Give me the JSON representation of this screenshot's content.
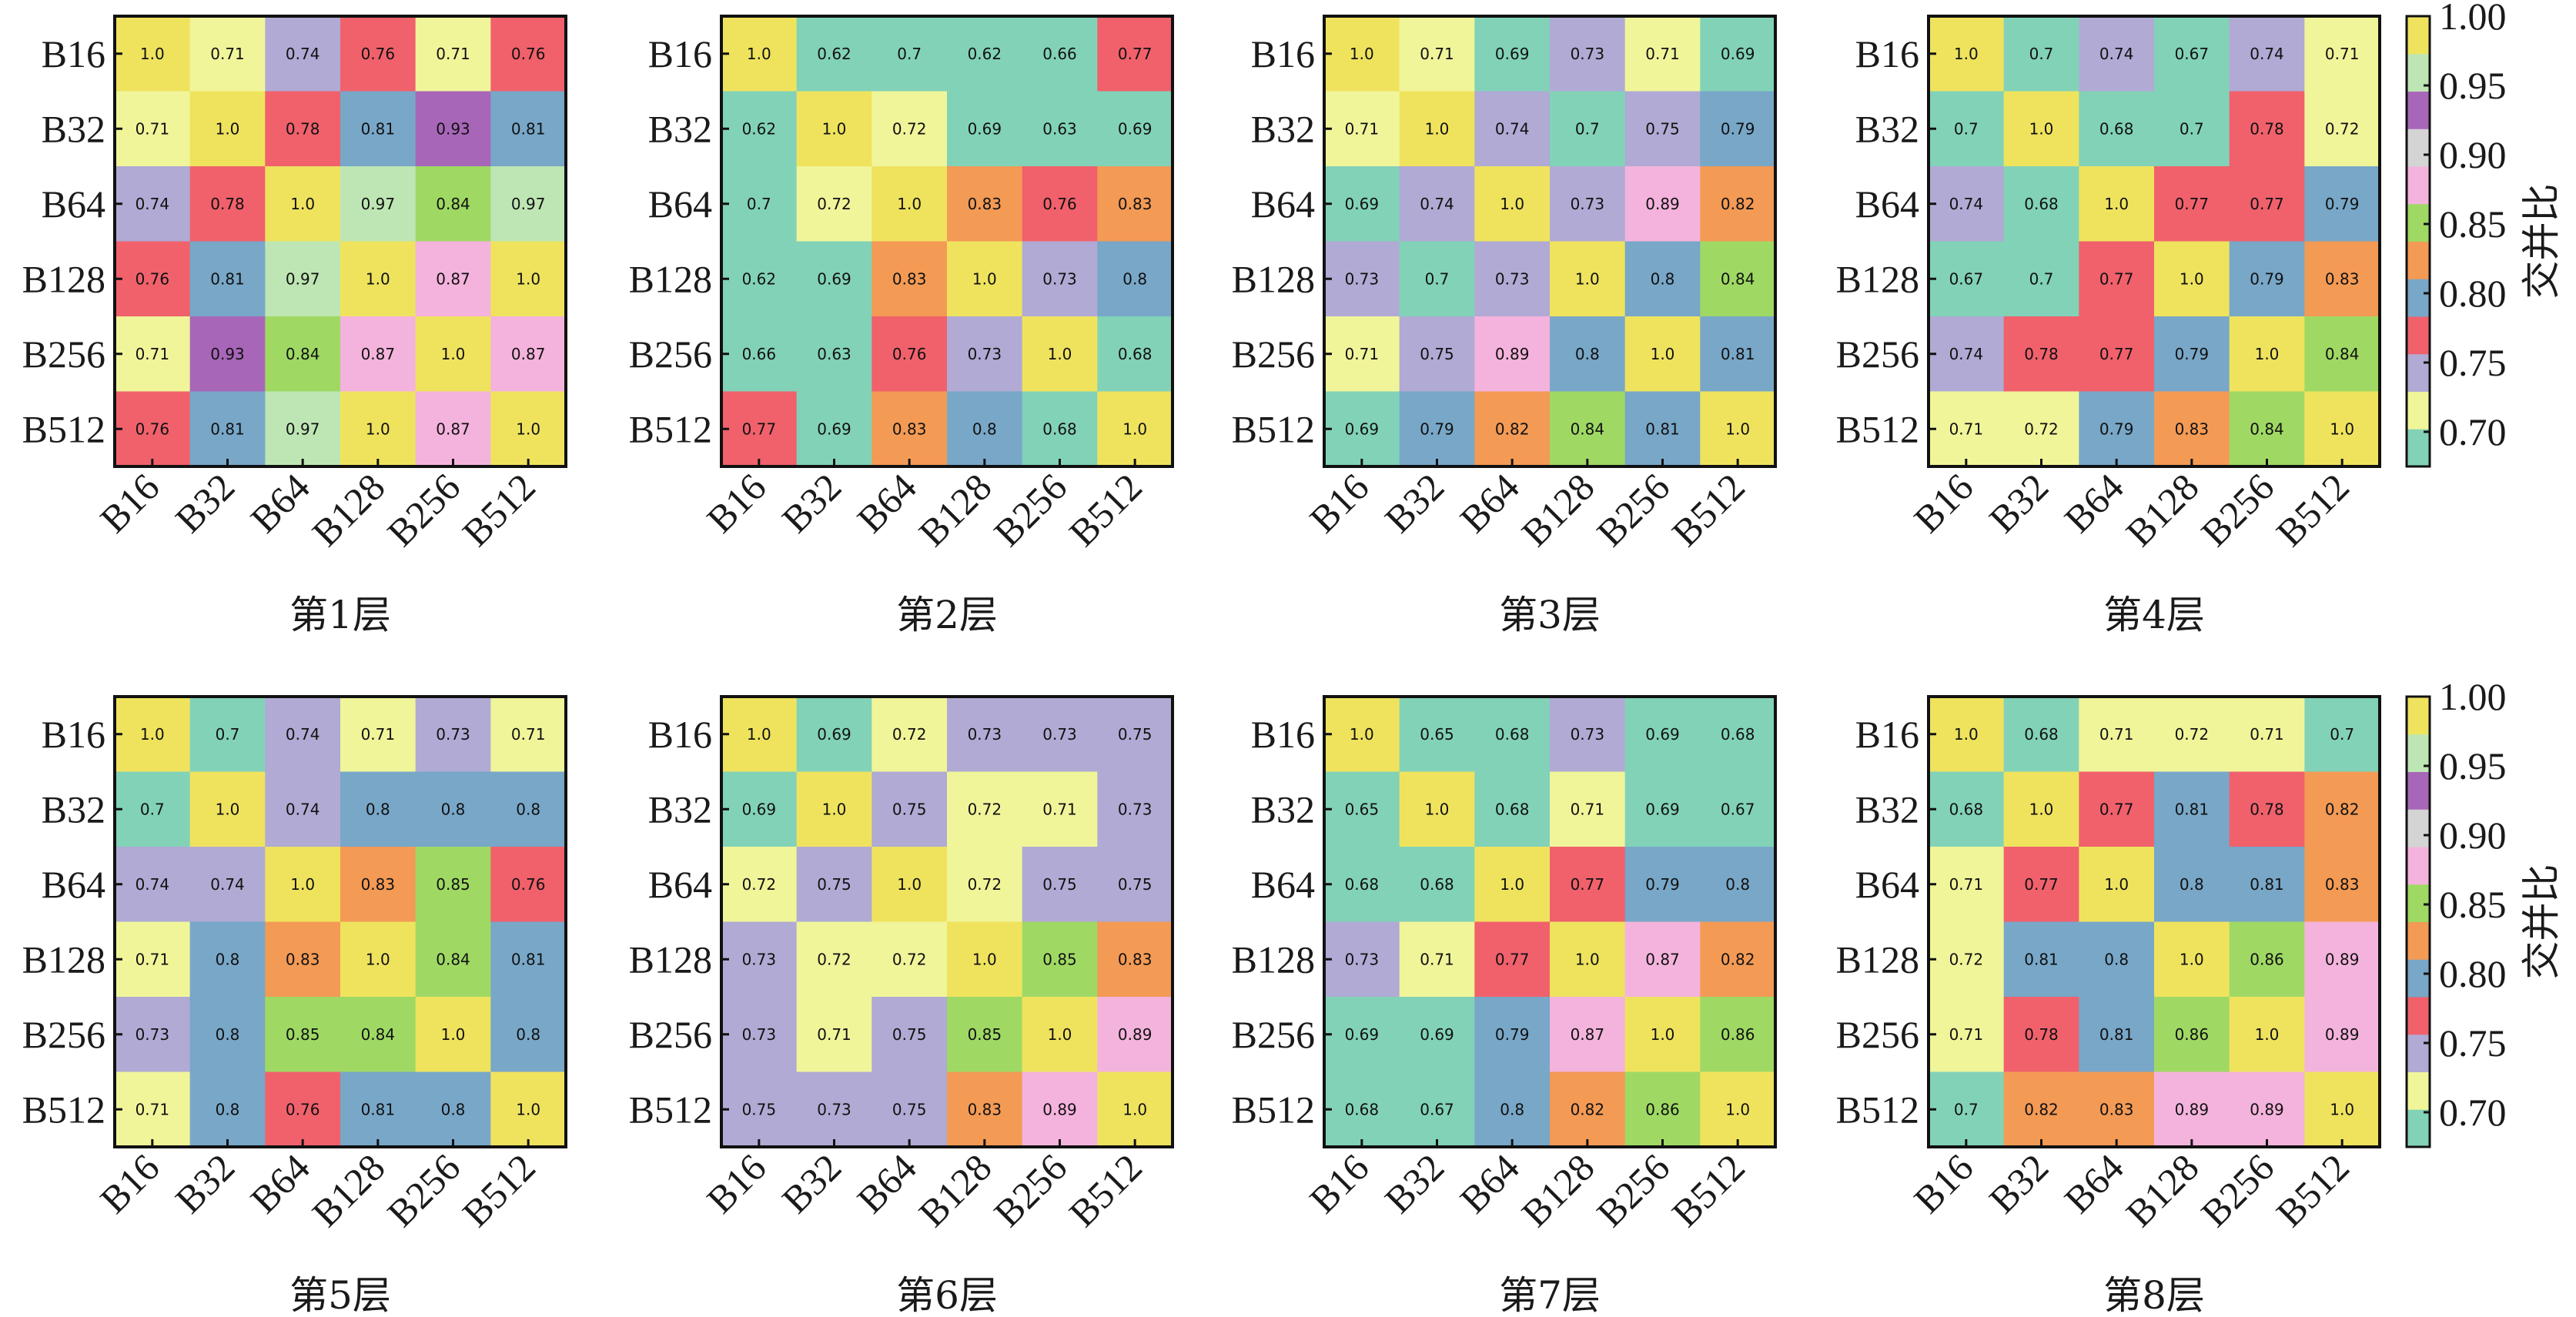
{
  "chart_data": {
    "type": "heatmap",
    "row_labels": [
      "B16",
      "B32",
      "B64",
      "B128",
      "B256",
      "B512"
    ],
    "col_labels": [
      "B16",
      "B32",
      "B64",
      "B128",
      "B256",
      "B512"
    ],
    "colorbar": {
      "label": "交并比",
      "ticks": [
        "0.70",
        "0.75",
        "0.80",
        "0.85",
        "0.90",
        "0.95",
        "1.00"
      ],
      "tick_values": [
        0.7,
        0.75,
        0.8,
        0.85,
        0.9,
        0.95,
        1.0
      ],
      "range": [
        0.675,
        1.0
      ],
      "colors": [
        "#82d2b8",
        "#f0f59a",
        "#b0aad4",
        "#f0616c",
        "#78a7c8",
        "#f39a55",
        "#9fd964",
        "#f4b3dc",
        "#d4d4d4",
        "#a866b8",
        "#bee6b4",
        "#efe35e"
      ]
    },
    "panels": [
      {
        "title": "第1层",
        "values": [
          [
            1.0,
            0.71,
            0.74,
            0.76,
            0.71,
            0.76
          ],
          [
            0.71,
            1.0,
            0.78,
            0.81,
            0.93,
            0.81
          ],
          [
            0.74,
            0.78,
            1.0,
            0.97,
            0.84,
            0.97
          ],
          [
            0.76,
            0.81,
            0.97,
            1.0,
            0.87,
            1.0
          ],
          [
            0.71,
            0.93,
            0.84,
            0.87,
            1.0,
            0.87
          ],
          [
            0.76,
            0.81,
            0.97,
            1.0,
            0.87,
            1.0
          ]
        ]
      },
      {
        "title": "第2层",
        "values": [
          [
            1.0,
            0.62,
            0.7,
            0.62,
            0.66,
            0.77
          ],
          [
            0.62,
            1.0,
            0.72,
            0.69,
            0.63,
            0.69
          ],
          [
            0.7,
            0.72,
            1.0,
            0.83,
            0.76,
            0.83
          ],
          [
            0.62,
            0.69,
            0.83,
            1.0,
            0.73,
            0.8
          ],
          [
            0.66,
            0.63,
            0.76,
            0.73,
            1.0,
            0.68
          ],
          [
            0.77,
            0.69,
            0.83,
            0.8,
            0.68,
            1.0
          ]
        ]
      },
      {
        "title": "第3层",
        "values": [
          [
            1.0,
            0.71,
            0.69,
            0.73,
            0.71,
            0.69
          ],
          [
            0.71,
            1.0,
            0.74,
            0.7,
            0.75,
            0.79
          ],
          [
            0.69,
            0.74,
            1.0,
            0.73,
            0.89,
            0.82
          ],
          [
            0.73,
            0.7,
            0.73,
            1.0,
            0.8,
            0.84
          ],
          [
            0.71,
            0.75,
            0.89,
            0.8,
            1.0,
            0.81
          ],
          [
            0.69,
            0.79,
            0.82,
            0.84,
            0.81,
            1.0
          ]
        ]
      },
      {
        "title": "第4层",
        "values": [
          [
            1.0,
            0.7,
            0.74,
            0.67,
            0.74,
            0.71
          ],
          [
            0.7,
            1.0,
            0.68,
            0.7,
            0.78,
            0.72
          ],
          [
            0.74,
            0.68,
            1.0,
            0.77,
            0.77,
            0.79
          ],
          [
            0.67,
            0.7,
            0.77,
            1.0,
            0.79,
            0.83
          ],
          [
            0.74,
            0.78,
            0.77,
            0.79,
            1.0,
            0.84
          ],
          [
            0.71,
            0.72,
            0.79,
            0.83,
            0.84,
            1.0
          ]
        ]
      },
      {
        "title": "第5层",
        "values": [
          [
            1.0,
            0.7,
            0.74,
            0.71,
            0.73,
            0.71
          ],
          [
            0.7,
            1.0,
            0.74,
            0.8,
            0.8,
            0.8
          ],
          [
            0.74,
            0.74,
            1.0,
            0.83,
            0.85,
            0.76
          ],
          [
            0.71,
            0.8,
            0.83,
            1.0,
            0.84,
            0.81
          ],
          [
            0.73,
            0.8,
            0.85,
            0.84,
            1.0,
            0.8
          ],
          [
            0.71,
            0.8,
            0.76,
            0.81,
            0.8,
            1.0
          ]
        ]
      },
      {
        "title": "第6层",
        "values": [
          [
            1.0,
            0.69,
            0.72,
            0.73,
            0.73,
            0.75
          ],
          [
            0.69,
            1.0,
            0.75,
            0.72,
            0.71,
            0.73
          ],
          [
            0.72,
            0.75,
            1.0,
            0.72,
            0.75,
            0.75
          ],
          [
            0.73,
            0.72,
            0.72,
            1.0,
            0.85,
            0.83
          ],
          [
            0.73,
            0.71,
            0.75,
            0.85,
            1.0,
            0.89
          ],
          [
            0.75,
            0.73,
            0.75,
            0.83,
            0.89,
            1.0
          ]
        ]
      },
      {
        "title": "第7层",
        "values": [
          [
            1.0,
            0.65,
            0.68,
            0.73,
            0.69,
            0.68
          ],
          [
            0.65,
            1.0,
            0.68,
            0.71,
            0.69,
            0.67
          ],
          [
            0.68,
            0.68,
            1.0,
            0.77,
            0.79,
            0.8
          ],
          [
            0.73,
            0.71,
            0.77,
            1.0,
            0.87,
            0.82
          ],
          [
            0.69,
            0.69,
            0.79,
            0.87,
            1.0,
            0.86
          ],
          [
            0.68,
            0.67,
            0.8,
            0.82,
            0.86,
            1.0
          ]
        ]
      },
      {
        "title": "第8层",
        "values": [
          [
            1.0,
            0.68,
            0.71,
            0.72,
            0.71,
            0.7
          ],
          [
            0.68,
            1.0,
            0.77,
            0.81,
            0.78,
            0.82
          ],
          [
            0.71,
            0.77,
            1.0,
            0.8,
            0.81,
            0.83
          ],
          [
            0.72,
            0.81,
            0.8,
            1.0,
            0.86,
            0.89
          ],
          [
            0.71,
            0.78,
            0.81,
            0.86,
            1.0,
            0.89
          ],
          [
            0.7,
            0.82,
            0.83,
            0.89,
            0.89,
            1.0
          ]
        ]
      }
    ]
  }
}
